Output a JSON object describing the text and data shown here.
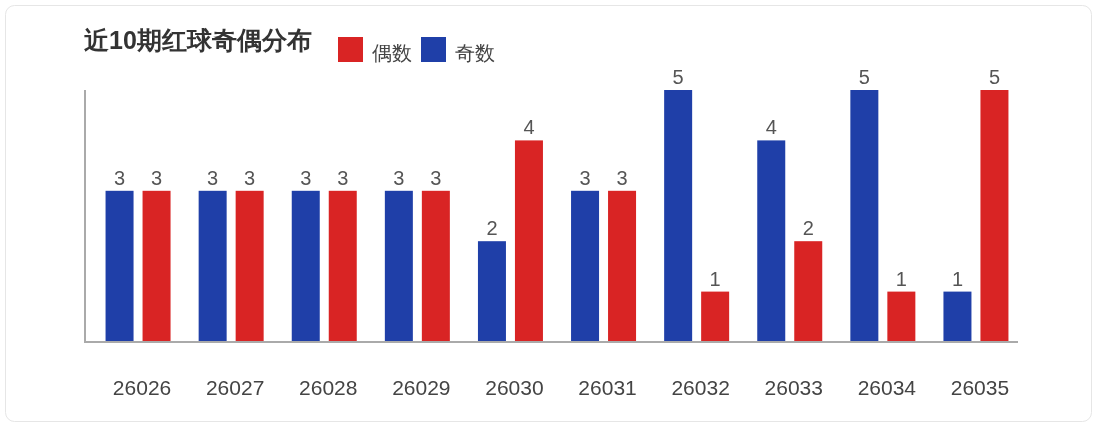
{
  "chart_data": {
    "type": "bar",
    "title": "近10期红球奇偶分布",
    "categories": [
      "26026",
      "26027",
      "26028",
      "26029",
      "26030",
      "26031",
      "26032",
      "26033",
      "26034",
      "26035"
    ],
    "series": [
      {
        "name": "奇数",
        "color": "#1f3fa8",
        "values": [
          3,
          3,
          3,
          3,
          2,
          3,
          5,
          4,
          5,
          1
        ]
      },
      {
        "name": "偶数",
        "color": "#d92424",
        "values": [
          3,
          3,
          3,
          3,
          4,
          3,
          1,
          2,
          1,
          5
        ]
      }
    ],
    "data_labels": true,
    "legend": "top",
    "grid": false
  }
}
